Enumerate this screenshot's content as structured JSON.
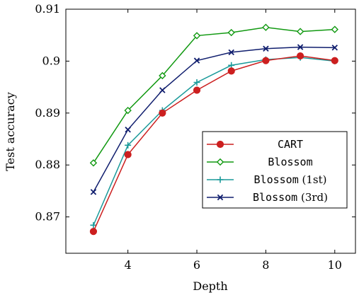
{
  "chart_data": {
    "type": "line",
    "xlabel": "Depth",
    "ylabel": "Test accuracy",
    "xlim": [
      2.2,
      10.6
    ],
    "ylim": [
      0.863,
      0.91
    ],
    "xticks": [
      4,
      6,
      8,
      10
    ],
    "xtick_labels": [
      "4",
      "6",
      "8",
      "10"
    ],
    "yticks": [
      0.87,
      0.88,
      0.89,
      0.9,
      0.91
    ],
    "ytick_labels": [
      "0.87",
      "0.88",
      "0.89",
      "0.9",
      "0.91"
    ],
    "grid": false,
    "legend_position": "center-right",
    "x": [
      3,
      4,
      5,
      6,
      7,
      8,
      9,
      10
    ],
    "series": [
      {
        "name": "CART",
        "suffix": "",
        "color": "#cc1f1f",
        "marker": "circle",
        "values": [
          0.8672,
          0.882,
          0.89,
          0.8944,
          0.8981,
          0.9001,
          0.901,
          0.9001
        ]
      },
      {
        "name": "Blossom",
        "suffix": "",
        "color": "#119911",
        "marker": "diamond",
        "values": [
          0.8804,
          0.8905,
          0.8972,
          0.9049,
          0.9055,
          0.9065,
          0.9057,
          0.9061
        ]
      },
      {
        "name": "Blossom",
        "suffix": "(1st)",
        "color": "#1a9a9a",
        "marker": "plus",
        "values": [
          0.8684,
          0.8838,
          0.8905,
          0.8959,
          0.8992,
          0.9003,
          0.9007,
          0.9
        ]
      },
      {
        "name": "Blossom",
        "suffix": "(3rd)",
        "color": "#101e6e",
        "marker": "x",
        "values": [
          0.8748,
          0.8868,
          0.8944,
          0.9001,
          0.9017,
          0.9024,
          0.9027,
          0.9026
        ]
      }
    ]
  }
}
